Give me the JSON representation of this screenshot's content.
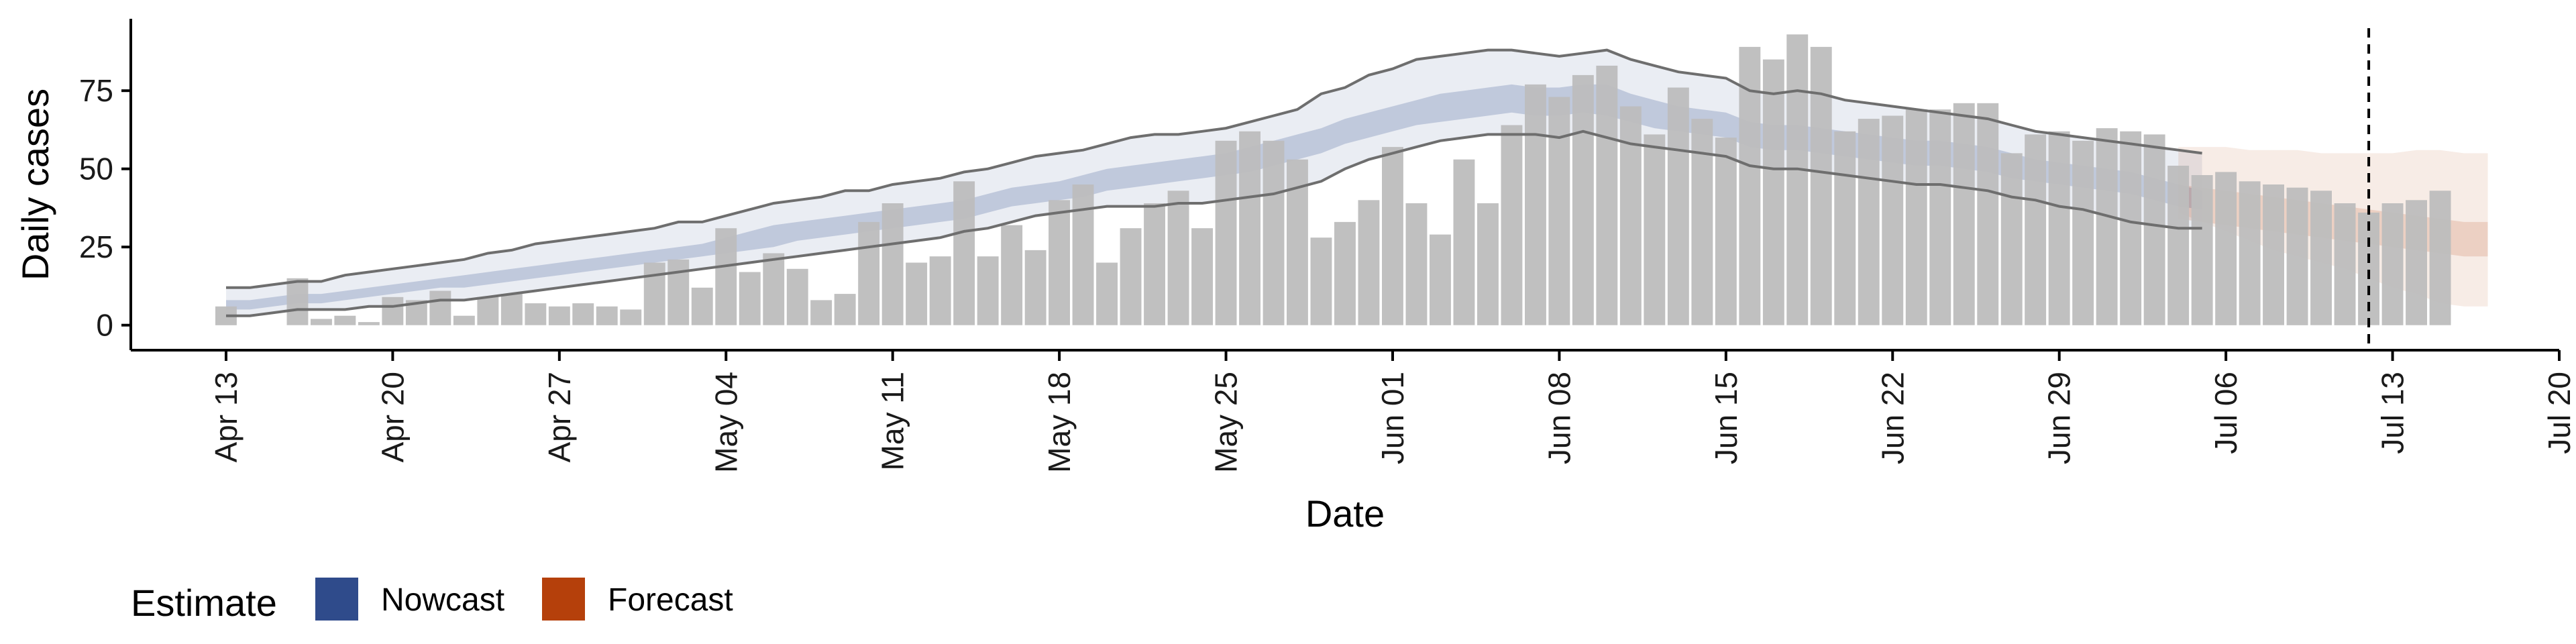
{
  "colors": {
    "bar": "#bdbdbd",
    "nowcast": "#2f4b8b",
    "forecast": "#b5400b",
    "median_line": "#6e6e6e",
    "axis": "#000000"
  },
  "legend": {
    "title": "Estimate",
    "items": [
      {
        "label": "Nowcast",
        "color": "#2f4b8b"
      },
      {
        "label": "Forecast",
        "color": "#b5400b"
      }
    ]
  },
  "chart_data": {
    "type": "bar",
    "title": "",
    "xlabel": "Date",
    "ylabel": "Daily cases",
    "x_range": [
      "2020-04-09",
      "2020-07-20"
    ],
    "ylim": [
      -8,
      98
    ],
    "x_ticks": [
      "2020-04-13",
      "2020-04-20",
      "2020-04-27",
      "2020-05-04",
      "2020-05-11",
      "2020-05-18",
      "2020-05-25",
      "2020-06-01",
      "2020-06-08",
      "2020-06-15",
      "2020-06-22",
      "2020-06-29",
      "2020-07-06",
      "2020-07-13",
      "2020-07-20"
    ],
    "x_tick_labels": [
      "Apr 13",
      "Apr 20",
      "Apr 27",
      "May 04",
      "May 11",
      "May 18",
      "May 25",
      "Jun 01",
      "Jun 08",
      "Jun 15",
      "Jun 22",
      "Jun 29",
      "Jul 06",
      "Jul 13",
      "Jul 20"
    ],
    "y_ticks": [
      0,
      25,
      50,
      75
    ],
    "grid": false,
    "legend_position": "bottom",
    "vline_date": "2020-07-12",
    "bars": {
      "start_date": "2020-04-13",
      "values": [
        6,
        0,
        0,
        15,
        2,
        3,
        1,
        9,
        8,
        11,
        3,
        9,
        10,
        7,
        6,
        7,
        6,
        5,
        20,
        21,
        12,
        31,
        17,
        23,
        18,
        8,
        10,
        33,
        39,
        20,
        22,
        46,
        22,
        32,
        24,
        40,
        45,
        20,
        31,
        39,
        43,
        31,
        59,
        62,
        59,
        53,
        28,
        33,
        40,
        57,
        39,
        29,
        53,
        39,
        64,
        77,
        73,
        80,
        83,
        70,
        61,
        76,
        66,
        60,
        89,
        85,
        93,
        89,
        62,
        66,
        67,
        69,
        69,
        71,
        71,
        55,
        61,
        62,
        59,
        63,
        62,
        61,
        51,
        48,
        49,
        46,
        45,
        44,
        43,
        39,
        36,
        39,
        40,
        43
      ]
    },
    "nowcast": {
      "start_date": "2020-04-13",
      "outer_upper": [
        12,
        12,
        13,
        14,
        14,
        16,
        17,
        18,
        19,
        20,
        21,
        23,
        24,
        26,
        27,
        28,
        29,
        30,
        31,
        33,
        33,
        35,
        37,
        39,
        40,
        41,
        43,
        43,
        45,
        46,
        47,
        49,
        50,
        52,
        54,
        55,
        56,
        58,
        60,
        61,
        61,
        62,
        63,
        65,
        67,
        69,
        74,
        76,
        80,
        82,
        85,
        86,
        87,
        88,
        88,
        87,
        86,
        87,
        88,
        85,
        83,
        81,
        80,
        79,
        75,
        74,
        75,
        74,
        72,
        71,
        70,
        69,
        68,
        67,
        66,
        64,
        62,
        61,
        60,
        59,
        58,
        57,
        56,
        55
      ],
      "outer_lower": [
        3,
        3,
        4,
        5,
        5,
        5,
        6,
        6,
        7,
        8,
        8,
        9,
        10,
        11,
        12,
        13,
        14,
        15,
        16,
        17,
        18,
        19,
        20,
        21,
        22,
        23,
        24,
        25,
        26,
        27,
        28,
        30,
        31,
        33,
        35,
        36,
        37,
        38,
        38,
        38,
        39,
        39,
        40,
        41,
        42,
        44,
        46,
        50,
        53,
        55,
        57,
        59,
        60,
        61,
        61,
        61,
        60,
        62,
        60,
        58,
        57,
        56,
        55,
        54,
        51,
        50,
        50,
        49,
        48,
        47,
        46,
        45,
        45,
        44,
        43,
        41,
        40,
        38,
        37,
        35,
        33,
        32,
        31,
        31
      ],
      "inner_upper": [
        8,
        8,
        9,
        10,
        10,
        11,
        12,
        13,
        14,
        15,
        16,
        17,
        18,
        19,
        20,
        21,
        22,
        23,
        24,
        25,
        26,
        28,
        30,
        32,
        33,
        34,
        35,
        36,
        37,
        38,
        39,
        40,
        42,
        44,
        45,
        46,
        48,
        50,
        51,
        52,
        53,
        54,
        55,
        57,
        59,
        61,
        63,
        66,
        68,
        70,
        72,
        74,
        75,
        76,
        77,
        76,
        76,
        77,
        77,
        74,
        72,
        70,
        69,
        68,
        65,
        64,
        64,
        63,
        62,
        61,
        60,
        59,
        59,
        58,
        57,
        55,
        53,
        52,
        51,
        50,
        49,
        47,
        45,
        43
      ],
      "inner_lower": [
        5,
        5,
        6,
        7,
        7,
        8,
        9,
        10,
        11,
        12,
        12,
        13,
        14,
        15,
        16,
        17,
        18,
        19,
        20,
        21,
        22,
        23,
        24,
        25,
        27,
        28,
        29,
        30,
        31,
        32,
        33,
        34,
        36,
        38,
        39,
        40,
        41,
        43,
        44,
        45,
        46,
        47,
        48,
        49,
        51,
        53,
        55,
        58,
        60,
        62,
        64,
        65,
        66,
        67,
        68,
        67,
        67,
        68,
        67,
        65,
        63,
        62,
        61,
        60,
        57,
        56,
        56,
        55,
        54,
        53,
        52,
        51,
        51,
        50,
        49,
        47,
        46,
        45,
        44,
        43,
        42,
        40,
        38,
        37
      ]
    },
    "forecast": {
      "start_date": "2020-07-04",
      "outer_upper": [
        57,
        57,
        57,
        56,
        56,
        56,
        55,
        55,
        55,
        55,
        56,
        56,
        55,
        55
      ],
      "outer_lower": [
        36,
        33,
        30,
        27,
        24,
        22,
        20,
        18,
        15,
        12,
        10,
        7,
        6,
        6
      ],
      "inner_upper": [
        45,
        44,
        43,
        42,
        41,
        40,
        39,
        38,
        37,
        36,
        35,
        34,
        33,
        33
      ],
      "inner_lower": [
        34,
        33,
        32,
        31,
        30,
        29,
        28,
        27,
        26,
        25,
        24,
        23,
        22,
        22
      ]
    }
  }
}
